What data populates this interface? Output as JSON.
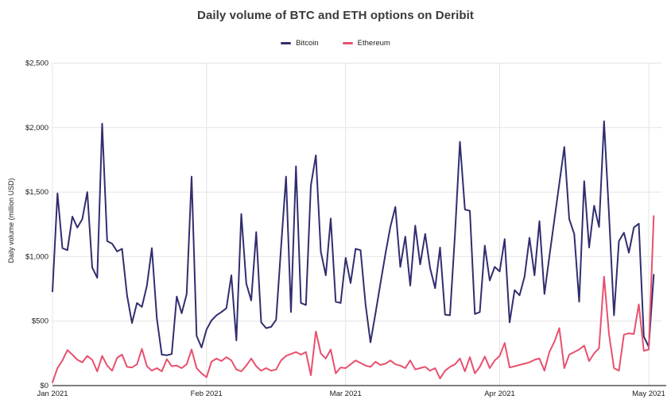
{
  "page": {
    "title": "Daily volume of BTC and ETH options on Deribit"
  },
  "legend": {
    "items": [
      {
        "label": "Bitcoin",
        "color": "#312e6f"
      },
      {
        "label": "Ethereum",
        "color": "#e8506e"
      }
    ]
  },
  "chart_data": {
    "type": "line",
    "title": "Daily volume of BTC and ETH options on Deribit",
    "xlabel": "",
    "ylabel": "Daily volume (million USD)",
    "ylim": [
      0,
      2500
    ],
    "grid": true,
    "legend_position": "top",
    "frequency": "daily",
    "start_date": "2021-01-01",
    "y_ticks": [
      {
        "value": 0,
        "label": "$0"
      },
      {
        "value": 500,
        "label": "$500"
      },
      {
        "value": 1000,
        "label": "$1,000"
      },
      {
        "value": 1500,
        "label": "$1,500"
      },
      {
        "value": 2000,
        "label": "$2,000"
      },
      {
        "value": 2500,
        "label": "$2,500"
      }
    ],
    "x_ticks": [
      {
        "day_offset": 0,
        "label": "Jan 2021"
      },
      {
        "day_offset": 31,
        "label": "Feb 2021"
      },
      {
        "day_offset": 59,
        "label": "Mar 2021"
      },
      {
        "day_offset": 90,
        "label": "Apr 2021"
      },
      {
        "day_offset": 120,
        "label": "May 2021"
      }
    ],
    "series": [
      {
        "name": "Bitcoin",
        "color": "#312e6f",
        "values": [
          730,
          1490,
          1065,
          1050,
          1310,
          1225,
          1290,
          1500,
          915,
          835,
          2030,
          1120,
          1100,
          1040,
          1060,
          700,
          485,
          640,
          610,
          775,
          1065,
          520,
          240,
          235,
          245,
          690,
          560,
          710,
          1620,
          385,
          295,
          435,
          505,
          545,
          570,
          600,
          855,
          350,
          1330,
          790,
          660,
          1190,
          490,
          445,
          455,
          510,
          1070,
          1620,
          570,
          1700,
          640,
          625,
          1550,
          1785,
          1040,
          855,
          1295,
          650,
          640,
          990,
          795,
          1060,
          1050,
          630,
          335,
          560,
          790,
          1020,
          1230,
          1385,
          920,
          1155,
          775,
          1240,
          940,
          1175,
          910,
          755,
          1070,
          550,
          545,
          1175,
          1890,
          1365,
          1355,
          555,
          570,
          1085,
          815,
          920,
          885,
          1135,
          490,
          740,
          700,
          845,
          1145,
          855,
          1275,
          710,
          1000,
          1285,
          1565,
          1850,
          1290,
          1175,
          650,
          1585,
          1070,
          1395,
          1230,
          2049,
          1330,
          545,
          1120,
          1185,
          1030,
          1225,
          1255,
          380,
          300,
          860
        ]
      },
      {
        "name": "Ethereum",
        "color": "#e8506e",
        "values": [
          25,
          135,
          195,
          275,
          240,
          200,
          180,
          230,
          200,
          110,
          230,
          155,
          115,
          215,
          240,
          145,
          140,
          165,
          285,
          150,
          115,
          135,
          110,
          205,
          150,
          155,
          135,
          165,
          280,
          135,
          95,
          65,
          185,
          210,
          190,
          220,
          195,
          125,
          110,
          155,
          210,
          150,
          115,
          135,
          115,
          125,
          195,
          230,
          245,
          260,
          240,
          260,
          80,
          420,
          250,
          210,
          280,
          95,
          140,
          135,
          165,
          195,
          175,
          155,
          145,
          185,
          160,
          170,
          195,
          165,
          155,
          135,
          195,
          125,
          135,
          145,
          115,
          135,
          55,
          115,
          145,
          165,
          210,
          110,
          220,
          95,
          145,
          225,
          135,
          195,
          230,
          330,
          140,
          150,
          160,
          170,
          180,
          200,
          210,
          115,
          260,
          340,
          445,
          135,
          240,
          260,
          280,
          310,
          190,
          250,
          290,
          845,
          400,
          135,
          115,
          395,
          405,
          400,
          630,
          270,
          280,
          1315
        ]
      }
    ]
  }
}
